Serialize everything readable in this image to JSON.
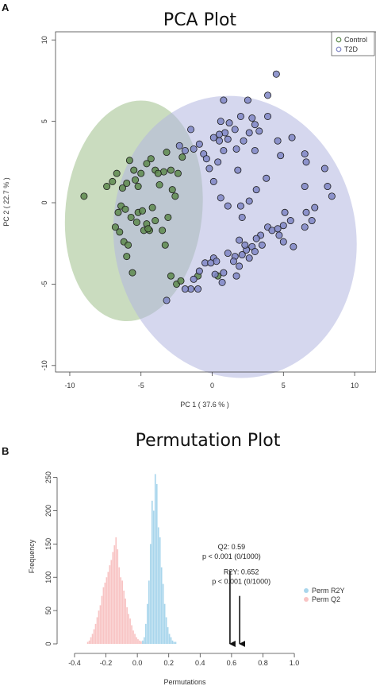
{
  "panels": {
    "a_letter": "A",
    "b_letter": "B"
  },
  "chart_data": [
    {
      "type": "scatter",
      "title": "PCA Plot",
      "xlabel": "PC 1 ( 37.6 % )",
      "ylabel": "PC 2 ( 22.7 % )",
      "xlim": [
        -11,
        11.5
      ],
      "ylim": [
        -10.4,
        10.5
      ],
      "xticks": [
        -10,
        -5,
        0,
        5,
        10
      ],
      "yticks": [
        -10,
        -5,
        0,
        5,
        10
      ],
      "grid": false,
      "legend_position": "top-right",
      "series": [
        {
          "name": "Control",
          "color": "#5e8a4e",
          "fill": "#5e8a4e",
          "ellipse_color": "#9fc08a",
          "ellipse": {
            "cx": -5.5,
            "cy": -0.5,
            "rx": 4.8,
            "ry": 6.8,
            "angle_deg": 6
          },
          "points": [
            [
              -9.0,
              0.4
            ],
            [
              -7.4,
              1.0
            ],
            [
              -7.0,
              1.3
            ],
            [
              -6.7,
              1.8
            ],
            [
              -6.3,
              0.9
            ],
            [
              -6.0,
              1.2
            ],
            [
              -5.8,
              2.6
            ],
            [
              -5.5,
              2.0
            ],
            [
              -5.4,
              1.4
            ],
            [
              -5.2,
              1.0
            ],
            [
              -5.0,
              1.8
            ],
            [
              -4.6,
              2.4
            ],
            [
              -4.3,
              2.7
            ],
            [
              -4.0,
              2.0
            ],
            [
              -3.7,
              1.1
            ],
            [
              -3.4,
              1.9
            ],
            [
              -3.2,
              3.1
            ],
            [
              -2.9,
              2.0
            ],
            [
              -2.8,
              0.8
            ],
            [
              -2.6,
              0.4
            ],
            [
              -2.4,
              1.8
            ],
            [
              -6.4,
              -0.2
            ],
            [
              -6.1,
              -0.4
            ],
            [
              -5.7,
              -0.9
            ],
            [
              -5.2,
              -0.6
            ],
            [
              -4.9,
              -0.5
            ],
            [
              -4.6,
              -1.3
            ],
            [
              -4.4,
              -1.7
            ],
            [
              -4.2,
              -0.3
            ],
            [
              -4.0,
              -1.1
            ],
            [
              -6.8,
              -1.5
            ],
            [
              -6.5,
              -1.8
            ],
            [
              -6.2,
              -2.4
            ],
            [
              -5.9,
              -2.6
            ],
            [
              -5.3,
              -1.2
            ],
            [
              -4.8,
              -1.7
            ],
            [
              -4.5,
              -1.6
            ],
            [
              -3.5,
              -1.7
            ],
            [
              -3.1,
              -0.9
            ],
            [
              -6.6,
              -0.6
            ],
            [
              -6.0,
              -3.3
            ],
            [
              -5.6,
              -4.3
            ],
            [
              -3.3,
              -2.6
            ],
            [
              -2.9,
              -4.5
            ],
            [
              -2.5,
              -5.0
            ],
            [
              -2.2,
              -4.8
            ],
            [
              -1.0,
              -4.5
            ],
            [
              0.4,
              -4.5
            ],
            [
              -3.8,
              1.8
            ],
            [
              -2.1,
              2.8
            ]
          ]
        },
        {
          "name": "T2D",
          "color": "#7f86c4",
          "fill": "#7f86c4",
          "ellipse_color": "#b2b7e0",
          "ellipse": {
            "cx": 1.6,
            "cy": -2.1,
            "rx": 8.5,
            "ry": 8.7,
            "angle_deg": -10
          },
          "points": [
            [
              4.5,
              7.9
            ],
            [
              3.9,
              6.6
            ],
            [
              0.8,
              6.3
            ],
            [
              2.5,
              6.3
            ],
            [
              2.0,
              5.3
            ],
            [
              3.9,
              5.3
            ],
            [
              0.6,
              5.0
            ],
            [
              1.2,
              4.9
            ],
            [
              2.8,
              5.2
            ],
            [
              3.0,
              4.8
            ],
            [
              1.6,
              4.5
            ],
            [
              3.3,
              4.4
            ],
            [
              0.9,
              4.3
            ],
            [
              -1.5,
              4.5
            ],
            [
              0.5,
              4.2
            ],
            [
              0.1,
              4.0
            ],
            [
              1.1,
              3.9
            ],
            [
              2.6,
              4.3
            ],
            [
              4.6,
              3.8
            ],
            [
              -2.3,
              3.5
            ],
            [
              -1.3,
              3.3
            ],
            [
              -0.9,
              3.6
            ],
            [
              0.5,
              3.8
            ],
            [
              1.7,
              3.3
            ],
            [
              2.2,
              3.8
            ],
            [
              5.6,
              4.0
            ],
            [
              6.5,
              3.0
            ],
            [
              4.8,
              2.9
            ],
            [
              -1.9,
              3.2
            ],
            [
              -0.6,
              3.0
            ],
            [
              0.8,
              3.2
            ],
            [
              3.0,
              3.2
            ],
            [
              -0.4,
              2.7
            ],
            [
              0.4,
              2.5
            ],
            [
              6.6,
              2.5
            ],
            [
              7.9,
              2.1
            ],
            [
              -0.2,
              2.1
            ],
            [
              1.8,
              2.0
            ],
            [
              3.8,
              1.5
            ],
            [
              6.5,
              1.0
            ],
            [
              8.1,
              1.0
            ],
            [
              0.1,
              1.3
            ],
            [
              3.1,
              0.8
            ],
            [
              8.4,
              0.4
            ],
            [
              0.6,
              0.3
            ],
            [
              2.6,
              0.1
            ],
            [
              1.1,
              -0.2
            ],
            [
              2.0,
              -0.2
            ],
            [
              7.2,
              -0.3
            ],
            [
              5.1,
              -0.6
            ],
            [
              2.1,
              -0.9
            ],
            [
              5.5,
              -1.1
            ],
            [
              6.6,
              -0.6
            ],
            [
              6.5,
              -1.5
            ],
            [
              7.0,
              -1.1
            ],
            [
              5.0,
              -1.4
            ],
            [
              3.9,
              -1.5
            ],
            [
              4.2,
              -1.7
            ],
            [
              4.6,
              -1.6
            ],
            [
              3.4,
              -2.0
            ],
            [
              4.7,
              -2.0
            ],
            [
              3.1,
              -2.2
            ],
            [
              1.9,
              -2.3
            ],
            [
              5.0,
              -2.4
            ],
            [
              2.8,
              -2.7
            ],
            [
              3.5,
              -2.6
            ],
            [
              2.4,
              -2.9
            ],
            [
              3.0,
              -3.0
            ],
            [
              5.7,
              -2.7
            ],
            [
              2.1,
              -3.2
            ],
            [
              1.6,
              -3.3
            ],
            [
              1.1,
              -3.1
            ],
            [
              1.5,
              -3.6
            ],
            [
              2.6,
              -3.4
            ],
            [
              0.1,
              -3.4
            ],
            [
              0.3,
              -3.6
            ],
            [
              -0.5,
              -3.7
            ],
            [
              -0.1,
              -3.7
            ],
            [
              1.9,
              -3.9
            ],
            [
              0.8,
              -4.3
            ],
            [
              1.7,
              -4.5
            ],
            [
              -0.9,
              -4.2
            ],
            [
              0.2,
              -4.4
            ],
            [
              -1.3,
              -4.7
            ],
            [
              -1.5,
              -5.3
            ],
            [
              -1.0,
              -5.3
            ],
            [
              0.7,
              -4.9
            ],
            [
              -3.2,
              -6.0
            ],
            [
              -1.9,
              -5.3
            ],
            [
              2.3,
              -2.6
            ]
          ]
        }
      ]
    },
    {
      "type": "histogram",
      "title": "Permutation Plot",
      "xlabel": "Permutations",
      "ylabel": "Frequency",
      "xlim": [
        -0.42,
        1.03
      ],
      "ylim": [
        0,
        265
      ],
      "xticks": [
        "-0.4",
        "-0.2",
        "0.0",
        "0.2",
        "0.4",
        "0.6",
        "0.8",
        "1.0"
      ],
      "xtick_values": [
        -0.4,
        -0.2,
        0.0,
        0.2,
        0.4,
        0.6,
        0.8,
        1.0
      ],
      "yticks": [
        "0",
        "50",
        "100",
        "150",
        "200",
        "250"
      ],
      "ytick_values": [
        0,
        50,
        100,
        150,
        200,
        250
      ],
      "legend_position": "right",
      "bin_width": 0.01,
      "series": [
        {
          "name": "Perm R2Y",
          "color": "#a9d6ec",
          "bin_starts": [
            0.03,
            0.04,
            0.05,
            0.06,
            0.07,
            0.08,
            0.09,
            0.1,
            0.11,
            0.12,
            0.13,
            0.14,
            0.15,
            0.16,
            0.17,
            0.18,
            0.19,
            0.2,
            0.21,
            0.22,
            0.23,
            0.24
          ],
          "counts": [
            5,
            10,
            30,
            60,
            95,
            150,
            215,
            200,
            255,
            240,
            175,
            160,
            115,
            90,
            60,
            40,
            25,
            15,
            10,
            5,
            3,
            3
          ]
        },
        {
          "name": "Perm Q2",
          "color": "#f8c4c4",
          "bin_starts": [
            -0.32,
            -0.31,
            -0.3,
            -0.29,
            -0.28,
            -0.27,
            -0.26,
            -0.25,
            -0.24,
            -0.23,
            -0.22,
            -0.21,
            -0.2,
            -0.19,
            -0.18,
            -0.17,
            -0.16,
            -0.15,
            -0.14,
            -0.13,
            -0.12,
            -0.11,
            -0.1,
            -0.09,
            -0.08,
            -0.07,
            -0.06,
            -0.05,
            -0.04,
            -0.03,
            -0.02,
            -0.01,
            0.0,
            0.01,
            0.02,
            0.03,
            0.04,
            0.05
          ],
          "counts": [
            3,
            5,
            10,
            15,
            22,
            30,
            40,
            50,
            58,
            72,
            85,
            92,
            100,
            108,
            118,
            126,
            138,
            148,
            160,
            142,
            115,
            100,
            95,
            80,
            68,
            55,
            45,
            38,
            28,
            20,
            15,
            10,
            7,
            5,
            4,
            3,
            2,
            2
          ]
        }
      ],
      "annotations": [
        {
          "label": "Q2: 0.59",
          "detail": "p < 0.001 (0/1000)",
          "x": 0.59,
          "arrow_from": 110
        },
        {
          "label": "R2Y: 0.652",
          "detail": "p < 0.001 (0/1000)",
          "x": 0.652,
          "arrow_from": 72
        }
      ]
    }
  ]
}
